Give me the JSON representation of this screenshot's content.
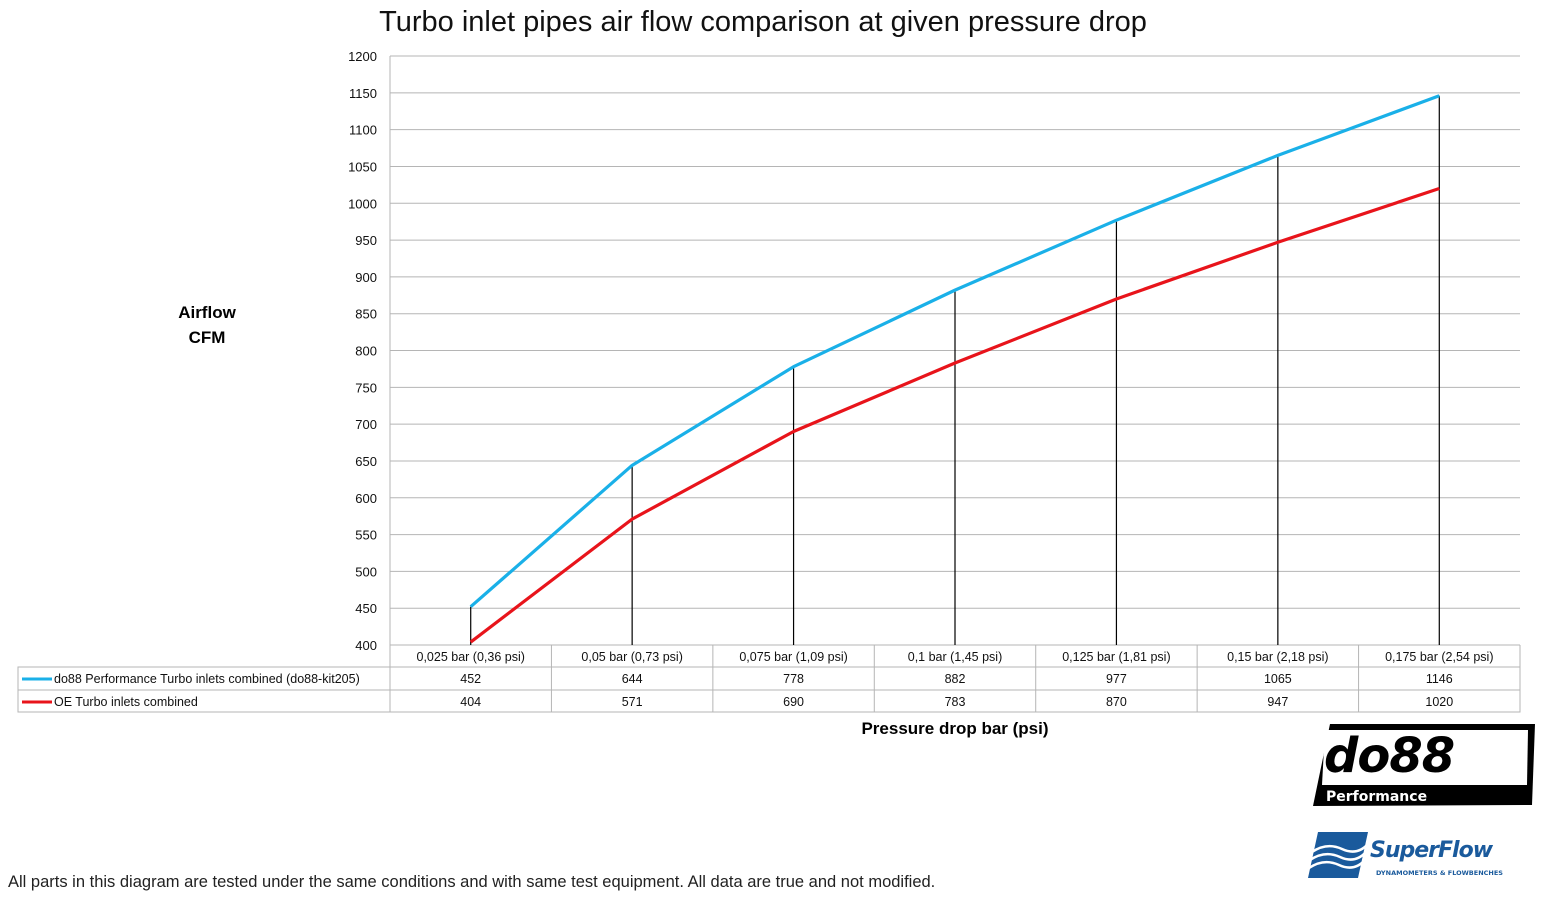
{
  "chart_data": {
    "type": "line",
    "title": "Turbo inlet pipes air flow comparison at given pressure drop",
    "xlabel": "Pressure drop bar (psi)",
    "ylabel": "Airflow CFM",
    "ylabel_lines": [
      "Airflow",
      "CFM"
    ],
    "ylim": [
      400,
      1200
    ],
    "yticks": [
      400,
      450,
      500,
      550,
      600,
      650,
      700,
      750,
      800,
      850,
      900,
      950,
      1000,
      1050,
      1100,
      1150,
      1200
    ],
    "grid": true,
    "legend": "data-table-below",
    "categories": [
      "0,025 bar (0,36 psi)",
      "0,05 bar (0,73 psi)",
      "0,075 bar (1,09 psi)",
      "0,1 bar (1,45 psi)",
      "0,125 bar (1,81 psi)",
      "0,15 bar (2,18 psi)",
      "0,175 bar (2,54 psi)"
    ],
    "series": [
      {
        "name": "do88 Performance Turbo inlets combined (do88-kit205)",
        "color": "#1ab0e8",
        "values": [
          452,
          644,
          778,
          882,
          977,
          1065,
          1146
        ]
      },
      {
        "name": "OE Turbo inlets combined",
        "color": "#e8141b",
        "values": [
          404,
          571,
          690,
          783,
          870,
          947,
          1020
        ]
      }
    ]
  },
  "footnote": "All parts in this diagram are tested under the same conditions and with same test equipment. All data are true and not modified.",
  "logos": {
    "do88": {
      "main": "do88",
      "sub": "Performance"
    },
    "superflow": {
      "main": "SuperFlow",
      "sub": "DYNAMOMETERS & FLOWBENCHES",
      "color": "#1a5a9c"
    }
  }
}
